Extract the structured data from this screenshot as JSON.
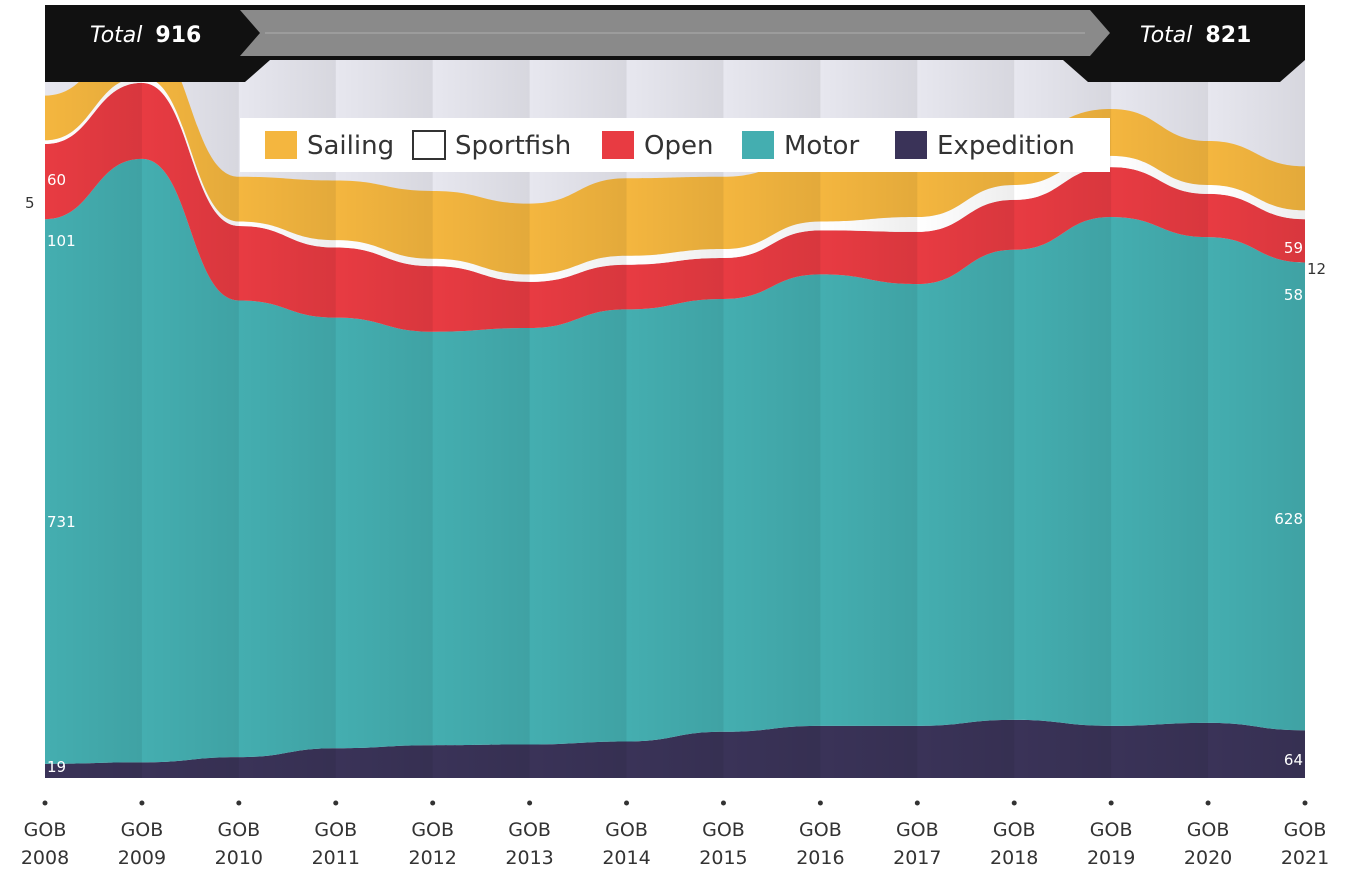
{
  "chart_data": {
    "type": "area",
    "stacked": true,
    "title": "",
    "xlabel": "",
    "ylabel": "",
    "grid": false,
    "legend_position": "top",
    "total_start_label": "Total",
    "total_start_value": "916",
    "total_end_label": "Total",
    "total_end_value": "821",
    "categories": [
      "GOB 2008",
      "GOB 2009",
      "GOB 2010",
      "GOB 2011",
      "GOB 2012",
      "GOB 2013",
      "GOB 2014",
      "GOB 2015",
      "GOB 2016",
      "GOB 2017",
      "GOB 2018",
      "GOB 2019",
      "GOB 2020",
      "GOB 2021"
    ],
    "series": [
      {
        "name": "Expedition",
        "color": "#3a3358",
        "values": [
          19,
          21,
          28,
          40,
          44,
          45,
          49,
          62,
          70,
          70,
          78,
          70,
          74,
          64
        ]
      },
      {
        "name": "Motor",
        "color": "#44aeb0",
        "values": [
          731,
          810,
          613,
          578,
          555,
          559,
          580,
          581,
          606,
          593,
          631,
          683,
          652,
          628
        ]
      },
      {
        "name": "Open",
        "color": "#e83b42",
        "values": [
          101,
          102,
          100,
          94,
          88,
          62,
          60,
          55,
          59,
          70,
          67,
          67,
          58,
          58
        ]
      },
      {
        "name": "Sportfish",
        "color": "#ffffff",
        "values": [
          5,
          8,
          6,
          10,
          10,
          10,
          12,
          12,
          12,
          20,
          20,
          15,
          12,
          12
        ]
      },
      {
        "name": "Sailing",
        "color": "#f4b63f",
        "values": [
          60,
          55,
          60,
          80,
          91,
          95,
          104,
          97,
          86,
          83,
          70,
          63,
          59,
          59
        ]
      }
    ],
    "start_labels": {
      "Expedition": "19",
      "Motor": "731",
      "Open": "101",
      "Sportfish": "5",
      "Sailing": "60"
    },
    "end_labels": {
      "Expedition": "64",
      "Motor": "628",
      "Open": "58",
      "Sportfish": "12",
      "Sailing": "59"
    },
    "legend_order": [
      "Sailing",
      "Sportfish",
      "Open",
      "Motor",
      "Expedition"
    ]
  }
}
